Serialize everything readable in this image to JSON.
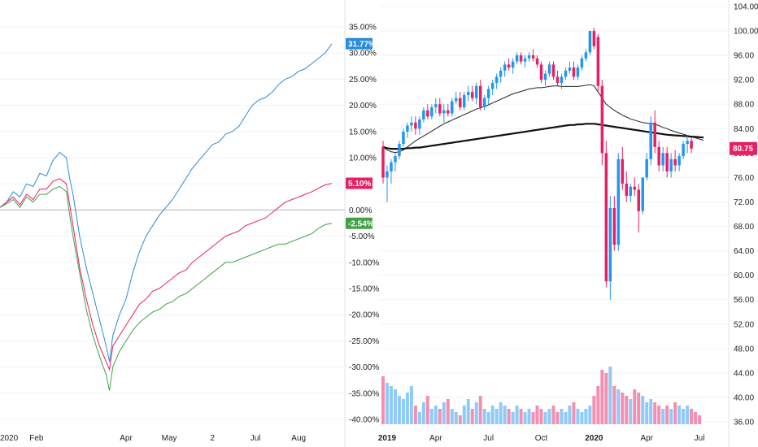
{
  "chart_data": [
    {
      "type": "line",
      "panel": "left",
      "y_unit": "%",
      "ylim": [
        -40,
        35
      ],
      "y_ticks": [
        "35.00%",
        "30.00%",
        "25.00%",
        "20.00%",
        "15.00%",
        "10.00%",
        "5.00%",
        "0.00%",
        "-5.00%",
        "-10.00%",
        "-15.00%",
        "-20.00%",
        "-25.00%",
        "-30.00%",
        "-35.00%",
        "-40.00%"
      ],
      "y_tick_values": [
        35,
        30,
        25,
        20,
        15,
        10,
        5,
        0,
        -5,
        -10,
        -15,
        -20,
        -25,
        -30,
        -35,
        -40
      ],
      "x_ticks": [
        "2020",
        "Feb",
        "Apr",
        "May",
        "2",
        "Jul",
        "Aug"
      ],
      "x_tick_positions": [
        0.0,
        0.55,
        1.9,
        2.55,
        3.2,
        3.85,
        4.5
      ],
      "xlim": [
        0,
        5.0
      ],
      "baseline": 0,
      "series": [
        {
          "color": "#2a8bd8",
          "last_label": "31.77%",
          "x": [
            0.0,
            0.1,
            0.2,
            0.3,
            0.4,
            0.5,
            0.6,
            0.7,
            0.8,
            0.9,
            1.0,
            1.05,
            1.1,
            1.2,
            1.3,
            1.4,
            1.5,
            1.6,
            1.65,
            1.7,
            1.8,
            1.9,
            2.0,
            2.1,
            2.2,
            2.3,
            2.4,
            2.5,
            2.6,
            2.7,
            2.8,
            2.9,
            3.0,
            3.1,
            3.2,
            3.3,
            3.4,
            3.5,
            3.6,
            3.7,
            3.8,
            3.9,
            4.0,
            4.1,
            4.2,
            4.3,
            4.4,
            4.5,
            4.6,
            4.7,
            4.8,
            4.9,
            5.0
          ],
          "y": [
            0.5,
            1.5,
            3.5,
            2.5,
            5,
            4.5,
            7,
            6.5,
            9.5,
            11,
            10,
            6,
            3,
            -5,
            -11,
            -16,
            -21,
            -26,
            -29,
            -24,
            -20,
            -17,
            -12,
            -8,
            -5,
            -3,
            -1,
            0.5,
            2,
            4,
            6,
            8,
            9.5,
            11,
            12.5,
            13,
            14.5,
            15,
            16,
            18,
            20,
            21,
            21.5,
            22.5,
            24,
            25,
            25.5,
            26.5,
            27,
            28,
            29,
            30,
            31.77
          ]
        },
        {
          "color": "#e91e63",
          "last_label": "5.10%",
          "x": [
            0.0,
            0.1,
            0.2,
            0.3,
            0.4,
            0.5,
            0.6,
            0.7,
            0.8,
            0.9,
            1.0,
            1.05,
            1.1,
            1.2,
            1.3,
            1.4,
            1.5,
            1.6,
            1.65,
            1.7,
            1.8,
            1.9,
            2.0,
            2.1,
            2.2,
            2.3,
            2.4,
            2.5,
            2.6,
            2.7,
            2.8,
            2.9,
            3.0,
            3.1,
            3.2,
            3.3,
            3.4,
            3.5,
            3.6,
            3.7,
            3.8,
            3.9,
            4.0,
            4.1,
            4.2,
            4.3,
            4.4,
            4.5,
            4.6,
            4.7,
            4.8,
            4.9,
            5.0
          ],
          "y": [
            0.5,
            1.5,
            2.5,
            1,
            3,
            2,
            4,
            4,
            5.5,
            6,
            5,
            1,
            -3,
            -11,
            -17,
            -22,
            -26,
            -29,
            -30.5,
            -26,
            -24,
            -22,
            -20,
            -18,
            -17,
            -15.5,
            -15,
            -14,
            -13,
            -12,
            -11.5,
            -10,
            -9,
            -8,
            -7,
            -6,
            -5,
            -4.5,
            -4,
            -3,
            -2.5,
            -2,
            -1.5,
            -0.5,
            0.5,
            1.5,
            2,
            2.5,
            3,
            3.5,
            4.2,
            4.8,
            5.1
          ]
        },
        {
          "color": "#43a047",
          "last_label": "-2.54%",
          "x": [
            0.0,
            0.1,
            0.2,
            0.3,
            0.4,
            0.5,
            0.6,
            0.7,
            0.8,
            0.9,
            1.0,
            1.05,
            1.1,
            1.2,
            1.3,
            1.4,
            1.5,
            1.6,
            1.65,
            1.7,
            1.8,
            1.9,
            2.0,
            2.1,
            2.2,
            2.3,
            2.4,
            2.5,
            2.6,
            2.7,
            2.8,
            2.9,
            3.0,
            3.1,
            3.2,
            3.3,
            3.4,
            3.5,
            3.6,
            3.7,
            3.8,
            3.9,
            4.0,
            4.1,
            4.2,
            4.3,
            4.4,
            4.5,
            4.6,
            4.7,
            4.8,
            4.9,
            5.0
          ],
          "y": [
            0.5,
            1.2,
            2,
            0.5,
            2.5,
            1.5,
            3,
            3,
            4,
            4.5,
            3.5,
            -1,
            -5,
            -12,
            -19,
            -24,
            -28,
            -31.5,
            -34.5,
            -30,
            -27,
            -25,
            -23,
            -21.5,
            -20.5,
            -19.5,
            -19,
            -18,
            -17.5,
            -16.5,
            -16,
            -15,
            -14,
            -13,
            -12,
            -11,
            -10,
            -10,
            -9.5,
            -9,
            -8.5,
            -8,
            -7.5,
            -7,
            -6.5,
            -6.5,
            -6,
            -5.5,
            -5,
            -4.5,
            -3.5,
            -2.8,
            -2.54
          ]
        }
      ]
    },
    {
      "type": "candlestick",
      "panel": "right",
      "ylim": [
        36,
        104
      ],
      "y_ticks": [
        "104.00",
        "100.00",
        "96.00",
        "92.00",
        "88.00",
        "84.00",
        "80.00",
        "76.00",
        "72.00",
        "68.00",
        "64.00",
        "60.00",
        "56.00",
        "52.00",
        "48.00",
        "44.00",
        "40.00",
        "36.00"
      ],
      "y_tick_values": [
        104,
        100,
        96,
        92,
        88,
        84,
        80,
        76,
        72,
        68,
        64,
        60,
        56,
        52,
        48,
        44,
        40,
        36
      ],
      "x_ticks": [
        "2019",
        "Apr",
        "Jul",
        "Oct",
        "2020",
        "Apr",
        "Jul"
      ],
      "x_tick_positions": [
        1,
        13,
        26,
        39,
        52,
        65,
        78
      ],
      "xlim": [
        -1,
        84
      ],
      "last_price_label": "80.75",
      "up_color": "#2196f3",
      "down_color": "#e91e63",
      "candles": [
        {
          "o": 81,
          "h": 82,
          "l": 75,
          "c": 76
        },
        {
          "o": 76,
          "h": 78,
          "l": 72,
          "c": 77
        },
        {
          "o": 77,
          "h": 79,
          "l": 75,
          "c": 78.5
        },
        {
          "o": 78.5,
          "h": 80,
          "l": 77,
          "c": 79.5
        },
        {
          "o": 79.5,
          "h": 82,
          "l": 79,
          "c": 81.5
        },
        {
          "o": 81.5,
          "h": 84,
          "l": 81,
          "c": 83.5
        },
        {
          "o": 83.5,
          "h": 85,
          "l": 82.5,
          "c": 84.5
        },
        {
          "o": 84.5,
          "h": 86,
          "l": 83.5,
          "c": 85
        },
        {
          "o": 85,
          "h": 86,
          "l": 83,
          "c": 84
        },
        {
          "o": 84,
          "h": 86,
          "l": 83,
          "c": 85.5
        },
        {
          "o": 85.5,
          "h": 87.5,
          "l": 85,
          "c": 87
        },
        {
          "o": 87,
          "h": 88,
          "l": 85.5,
          "c": 86
        },
        {
          "o": 86,
          "h": 88,
          "l": 85.5,
          "c": 87.5
        },
        {
          "o": 87.5,
          "h": 89,
          "l": 86.5,
          "c": 88
        },
        {
          "o": 88,
          "h": 89,
          "l": 86,
          "c": 86.5
        },
        {
          "o": 86.5,
          "h": 88,
          "l": 85,
          "c": 87
        },
        {
          "o": 87,
          "h": 88,
          "l": 86,
          "c": 86.5
        },
        {
          "o": 86.5,
          "h": 89,
          "l": 86,
          "c": 88.5
        },
        {
          "o": 88.5,
          "h": 90,
          "l": 88,
          "c": 89
        },
        {
          "o": 89,
          "h": 90,
          "l": 87,
          "c": 87.5
        },
        {
          "o": 87.5,
          "h": 90,
          "l": 87,
          "c": 89.5
        },
        {
          "o": 89.5,
          "h": 91,
          "l": 88.5,
          "c": 90
        },
        {
          "o": 90,
          "h": 91,
          "l": 88.5,
          "c": 89
        },
        {
          "o": 89,
          "h": 91.5,
          "l": 88,
          "c": 91
        },
        {
          "o": 91,
          "h": 92,
          "l": 87,
          "c": 87.5
        },
        {
          "o": 87.5,
          "h": 89.5,
          "l": 87,
          "c": 89
        },
        {
          "o": 89,
          "h": 91,
          "l": 88,
          "c": 90.5
        },
        {
          "o": 90.5,
          "h": 92,
          "l": 89.5,
          "c": 91.5
        },
        {
          "o": 91.5,
          "h": 93,
          "l": 90.5,
          "c": 92.5
        },
        {
          "o": 92.5,
          "h": 94,
          "l": 91.5,
          "c": 93.5
        },
        {
          "o": 93.5,
          "h": 95,
          "l": 92.5,
          "c": 94.5
        },
        {
          "o": 94.5,
          "h": 95.5,
          "l": 93.5,
          "c": 94
        },
        {
          "o": 94,
          "h": 95.5,
          "l": 93,
          "c": 95
        },
        {
          "o": 95,
          "h": 96.5,
          "l": 94.5,
          "c": 96
        },
        {
          "o": 96,
          "h": 96.5,
          "l": 94.5,
          "c": 95
        },
        {
          "o": 95,
          "h": 96,
          "l": 94,
          "c": 95.5
        },
        {
          "o": 95.5,
          "h": 96.5,
          "l": 95,
          "c": 96
        },
        {
          "o": 96,
          "h": 97,
          "l": 95,
          "c": 95.5
        },
        {
          "o": 95.5,
          "h": 96,
          "l": 94,
          "c": 94.5
        },
        {
          "o": 94.5,
          "h": 95,
          "l": 91.5,
          "c": 92
        },
        {
          "o": 92,
          "h": 93.5,
          "l": 91,
          "c": 93
        },
        {
          "o": 93,
          "h": 95,
          "l": 92.5,
          "c": 94.5
        },
        {
          "o": 94.5,
          "h": 95,
          "l": 92,
          "c": 92.5
        },
        {
          "o": 92.5,
          "h": 93.5,
          "l": 91,
          "c": 91.5
        },
        {
          "o": 91.5,
          "h": 93,
          "l": 90.5,
          "c": 92.5
        },
        {
          "o": 92.5,
          "h": 94,
          "l": 92,
          "c": 93.5
        },
        {
          "o": 93.5,
          "h": 95,
          "l": 93,
          "c": 94
        },
        {
          "o": 94,
          "h": 95,
          "l": 92,
          "c": 92.5
        },
        {
          "o": 92.5,
          "h": 94.5,
          "l": 92,
          "c": 94
        },
        {
          "o": 94,
          "h": 96,
          "l": 93.5,
          "c": 95.5
        },
        {
          "o": 95.5,
          "h": 97,
          "l": 95,
          "c": 96.5
        },
        {
          "o": 96.5,
          "h": 100,
          "l": 96,
          "c": 100
        },
        {
          "o": 100,
          "h": 100.5,
          "l": 97,
          "c": 97.5
        },
        {
          "o": 99,
          "h": 99.5,
          "l": 90,
          "c": 91
        },
        {
          "o": 91,
          "h": 92,
          "l": 78,
          "c": 80
        },
        {
          "o": 80,
          "h": 82,
          "l": 58,
          "c": 59
        },
        {
          "o": 59,
          "h": 73,
          "l": 56,
          "c": 71
        },
        {
          "o": 71,
          "h": 73,
          "l": 64,
          "c": 65
        },
        {
          "o": 65,
          "h": 80,
          "l": 64,
          "c": 79
        },
        {
          "o": 79,
          "h": 81,
          "l": 74,
          "c": 75
        },
        {
          "o": 75,
          "h": 77,
          "l": 72,
          "c": 73
        },
        {
          "o": 73,
          "h": 75,
          "l": 72,
          "c": 74.5
        },
        {
          "o": 74.5,
          "h": 76,
          "l": 73,
          "c": 74
        },
        {
          "o": 74,
          "h": 75,
          "l": 67,
          "c": 70.5
        },
        {
          "o": 70.5,
          "h": 76,
          "l": 70,
          "c": 76
        },
        {
          "o": 76,
          "h": 80,
          "l": 75.5,
          "c": 79
        },
        {
          "o": 79,
          "h": 86,
          "l": 78,
          "c": 85
        },
        {
          "o": 85,
          "h": 87,
          "l": 80,
          "c": 81
        },
        {
          "o": 81,
          "h": 82,
          "l": 77,
          "c": 78
        },
        {
          "o": 78,
          "h": 81,
          "l": 77,
          "c": 80
        },
        {
          "o": 80,
          "h": 81,
          "l": 76,
          "c": 77
        },
        {
          "o": 77,
          "h": 80,
          "l": 76,
          "c": 79
        },
        {
          "o": 79,
          "h": 80.5,
          "l": 77,
          "c": 78
        },
        {
          "o": 78,
          "h": 80,
          "l": 77,
          "c": 79.5
        },
        {
          "o": 79.5,
          "h": 82,
          "l": 79,
          "c": 81.5
        },
        {
          "o": 81.5,
          "h": 83,
          "l": 80,
          "c": 82
        },
        {
          "o": 82,
          "h": 82.5,
          "l": 80,
          "c": 80.75
        }
      ],
      "volume": [
        50,
        48,
        47,
        46,
        44,
        43,
        45,
        47,
        41,
        39,
        42,
        44,
        40,
        41,
        40,
        42,
        43,
        40,
        39,
        38,
        41,
        43,
        40,
        42,
        44,
        40,
        39,
        41,
        40,
        42,
        41,
        40,
        39,
        41,
        40,
        39,
        40,
        39,
        41,
        40,
        39,
        40,
        41,
        39,
        40,
        39,
        41,
        42,
        40,
        39,
        40,
        41,
        44,
        47,
        52,
        51,
        53,
        47,
        46,
        45,
        44,
        43,
        46,
        45,
        44,
        42,
        43,
        42,
        41,
        40,
        41,
        40,
        42,
        41,
        40,
        41,
        40,
        39,
        38
      ],
      "ma_fast": [
        81,
        80.5,
        80.2,
        80.1,
        80.2,
        80.5,
        81,
        81.5,
        82,
        82.4,
        82.8,
        83.2,
        83.6,
        84,
        84.4,
        84.8,
        85.1,
        85.4,
        85.7,
        86,
        86.3,
        86.6,
        86.9,
        87.2,
        87.4,
        87.6,
        87.9,
        88.2,
        88.5,
        88.8,
        89.1,
        89.4,
        89.7,
        89.9,
        90.1,
        90.3,
        90.5,
        90.6,
        90.7,
        90.7,
        90.8,
        90.9,
        91,
        91,
        90.9,
        90.9,
        90.9,
        90.9,
        90.9,
        91,
        91.1,
        91.2,
        91,
        90,
        89,
        88,
        87.5,
        87,
        86.6,
        86.2,
        85.9,
        85.6,
        85.4,
        85.2,
        85,
        84.9,
        84.8,
        84.7,
        84.5,
        84.2,
        84,
        83.7,
        83.5,
        83.3,
        83.1,
        82.9,
        82.7,
        82.5,
        82.3,
        82.1
      ],
      "ma_slow": [
        81,
        80.8,
        80.7,
        80.7,
        80.7,
        80.7,
        80.8,
        80.8,
        80.9,
        80.9,
        81,
        81.1,
        81.2,
        81.3,
        81.4,
        81.5,
        81.6,
        81.7,
        81.8,
        81.9,
        82,
        82.1,
        82.2,
        82.3,
        82.4,
        82.5,
        82.6,
        82.7,
        82.8,
        82.9,
        83,
        83.1,
        83.2,
        83.3,
        83.4,
        83.5,
        83.6,
        83.7,
        83.8,
        83.9,
        84,
        84.1,
        84.2,
        84.3,
        84.4,
        84.5,
        84.6,
        84.6,
        84.7,
        84.7,
        84.8,
        84.8,
        84.8,
        84.7,
        84.6,
        84.5,
        84.4,
        84.3,
        84.2,
        84.1,
        84,
        83.9,
        83.8,
        83.7,
        83.6,
        83.5,
        83.4,
        83.3,
        83.2,
        83.1,
        83,
        82.95,
        82.9,
        82.85,
        82.8,
        82.75,
        82.7,
        82.65,
        82.6,
        82.55
      ]
    }
  ]
}
